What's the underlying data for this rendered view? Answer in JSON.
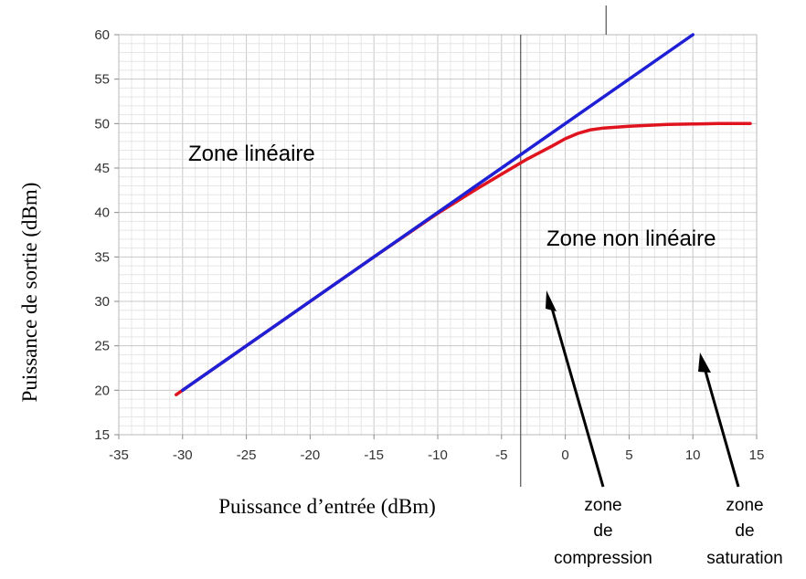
{
  "chart_data": {
    "type": "line",
    "xlabel": "Puissance d’entrée (dBm)",
    "ylabel": "Puissance de sortie (dBm)",
    "xlim": [
      -35,
      15
    ],
    "ylim": [
      15,
      60
    ],
    "xticks": [
      -35,
      -30,
      -25,
      -20,
      -15,
      -10,
      -5,
      0,
      5,
      10,
      15
    ],
    "yticks": [
      15,
      20,
      25,
      30,
      35,
      40,
      45,
      50,
      55,
      60
    ],
    "grid": true,
    "legend": "none",
    "series": [
      {
        "color": "#1f1fd6",
        "x": [
          -30,
          10
        ],
        "y": [
          20,
          60
        ]
      },
      {
        "color": "#e0141e",
        "x": [
          -30.5,
          -25,
          -20,
          -15,
          -10,
          -7,
          -5,
          -3,
          -1,
          0,
          1,
          2,
          3,
          5,
          8,
          10,
          12,
          14.5
        ],
        "y": [
          19.5,
          25,
          30,
          35,
          39.9,
          42.6,
          44.3,
          46.0,
          47.5,
          48.3,
          48.9,
          49.3,
          49.5,
          49.7,
          49.9,
          49.95,
          50,
          50
        ]
      }
    ],
    "vlines": [
      -3.5,
      3.2
    ],
    "annotations": {
      "linear": "Zone linéaire",
      "nonlinear": "Zone non linéaire",
      "compression": [
        "zone",
        "de",
        "compression"
      ],
      "saturation": [
        "zone",
        "de",
        "saturation"
      ]
    }
  }
}
